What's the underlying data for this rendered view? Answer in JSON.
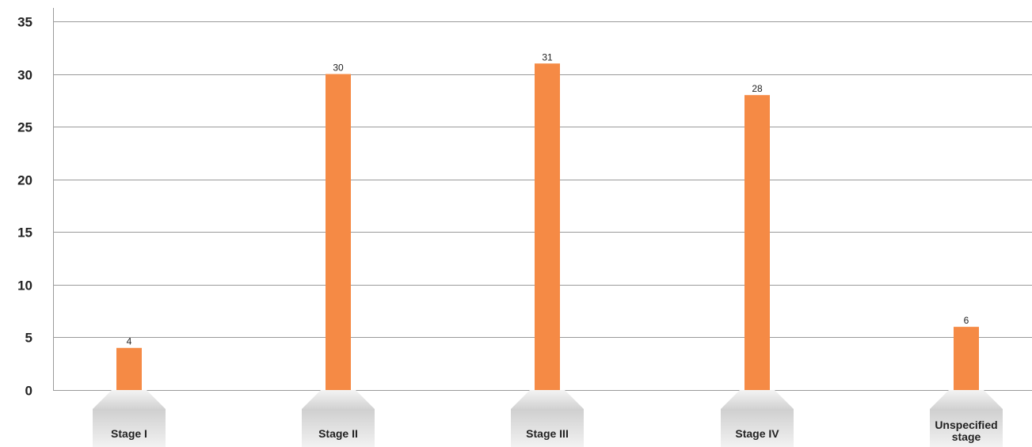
{
  "chart_data": {
    "type": "bar",
    "categories": [
      "Stage I",
      "Stage II",
      "Stage III",
      "Stage IV",
      "Unspecified stage"
    ],
    "values": [
      4,
      30,
      31,
      28,
      6
    ],
    "ylim": [
      0,
      35
    ],
    "yticks": [
      0,
      5,
      10,
      15,
      20,
      25,
      30,
      35
    ],
    "grid": true,
    "bar_color": "#F58A45",
    "grid_color": "#9a9a9a",
    "label_box_color": "#dedede",
    "data_labels": true
  }
}
